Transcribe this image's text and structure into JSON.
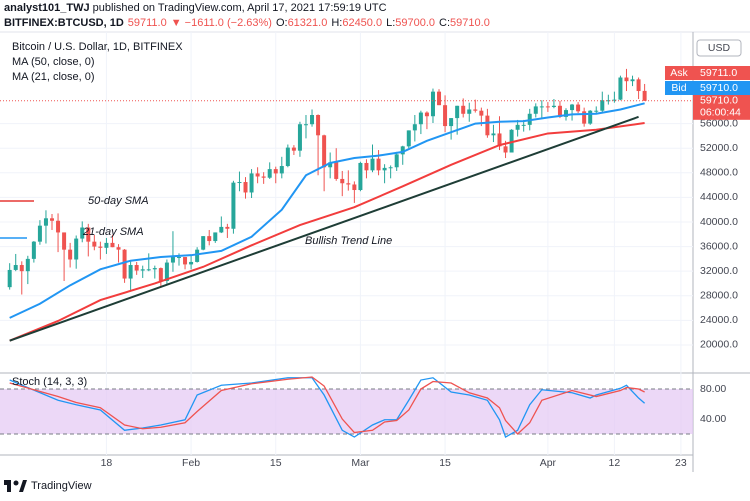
{
  "header": {
    "author": "analyst101_TWJ",
    "published": " published on TradingView.com, April 17, 2021 17:59:19 UTC",
    "symbol": "BITFINEX:BTCUSD, 1D",
    "last": "59711.0",
    "change": "▼ −1611.0 (−2.63%)",
    "ohlc": [
      {
        "label": "O:",
        "value": "61321.0"
      },
      {
        "label": "H:",
        "value": "62450.0"
      },
      {
        "label": "L:",
        "value": "59700.0"
      },
      {
        "label": "C:",
        "value": "59710.0"
      }
    ]
  },
  "chart_data": [
    {
      "type": "candlestick",
      "title": "Bitcoin / U.S. Dollar, 1D, BITFINEX",
      "currency": "USD",
      "up_color": "#26a69a",
      "down_color": "#ef5350",
      "xlim": [
        -1.6,
        113
      ],
      "ylim": [
        15600,
        69600
      ],
      "xticks": [
        {
          "value": 16,
          "label": "18"
        },
        {
          "value": 30,
          "label": "Feb"
        },
        {
          "value": 44,
          "label": "15"
        },
        {
          "value": 58,
          "label": "Mar"
        },
        {
          "value": 72,
          "label": "15"
        },
        {
          "value": 89,
          "label": "Apr"
        },
        {
          "value": 100,
          "label": "12"
        },
        {
          "value": 111,
          "label": "23"
        }
      ],
      "yticks": [
        {
          "value": 20000,
          "label": "20000.0"
        },
        {
          "value": 24000,
          "label": "24000.0"
        },
        {
          "value": 28000,
          "label": "28000.0"
        },
        {
          "value": 32000,
          "label": "32000.0"
        },
        {
          "value": 36000,
          "label": "36000.0"
        },
        {
          "value": 40000,
          "label": "40000.0"
        },
        {
          "value": 44000,
          "label": "44000.0"
        },
        {
          "value": 48000,
          "label": "48000.0"
        },
        {
          "value": 52000,
          "label": "52000.0"
        },
        {
          "value": 56000,
          "label": "56000.0"
        }
      ],
      "grid": true,
      "ohlc": [
        [
          29400,
          33300,
          29000,
          32200
        ],
        [
          32200,
          34800,
          32000,
          33000
        ],
        [
          33000,
          33600,
          28200,
          32000
        ],
        [
          32000,
          34500,
          29900,
          34000
        ],
        [
          34000,
          36900,
          33400,
          36800
        ],
        [
          36800,
          40300,
          36300,
          39400
        ],
        [
          39400,
          41900,
          36500,
          40600
        ],
        [
          40600,
          41300,
          38700,
          40200
        ],
        [
          40200,
          41400,
          35100,
          38300
        ],
        [
          38300,
          38300,
          30400,
          35500
        ],
        [
          35500,
          36600,
          32600,
          33900
        ],
        [
          33900,
          37800,
          32400,
          37300
        ],
        [
          37300,
          40100,
          36700,
          39100
        ],
        [
          39100,
          39700,
          34400,
          36800
        ],
        [
          36800,
          37900,
          35400,
          36000
        ],
        [
          36000,
          36800,
          33900,
          35800
        ],
        [
          35800,
          37400,
          34800,
          36600
        ],
        [
          36600,
          37900,
          35900,
          35900
        ],
        [
          35900,
          36400,
          33400,
          35500
        ],
        [
          35500,
          35600,
          30100,
          30800
        ],
        [
          30800,
          33800,
          28900,
          33000
        ],
        [
          33000,
          33500,
          31400,
          32100
        ],
        [
          32100,
          32900,
          30900,
          32300
        ],
        [
          32300,
          34900,
          32000,
          32300
        ],
        [
          32300,
          32900,
          30800,
          32500
        ],
        [
          32500,
          32600,
          29300,
          30400
        ],
        [
          30400,
          33900,
          29900,
          33400
        ],
        [
          33400,
          38500,
          31900,
          34300
        ],
        [
          34300,
          34900,
          32900,
          34300
        ],
        [
          34300,
          34300,
          32300,
          33100
        ],
        [
          33100,
          34700,
          32300,
          33500
        ],
        [
          33500,
          35900,
          33400,
          35500
        ],
        [
          35500,
          37700,
          35400,
          37700
        ],
        [
          37700,
          38700,
          36200,
          36900
        ],
        [
          36900,
          38300,
          36600,
          38300
        ],
        [
          38300,
          40900,
          38200,
          39200
        ],
        [
          39200,
          39700,
          37400,
          38900
        ],
        [
          38900,
          46700,
          38100,
          46400
        ],
        [
          46400,
          48200,
          45000,
          46500
        ],
        [
          46500,
          47300,
          43800,
          44800
        ],
        [
          44800,
          48600,
          43900,
          47900
        ],
        [
          47900,
          48900,
          46300,
          47400
        ],
        [
          47400,
          48100,
          46200,
          47200
        ],
        [
          47200,
          49700,
          47000,
          48600
        ],
        [
          48600,
          49000,
          46300,
          47900
        ],
        [
          47900,
          50600,
          47100,
          49100
        ],
        [
          49100,
          52600,
          48900,
          52100
        ],
        [
          52100,
          52500,
          50900,
          51600
        ],
        [
          51600,
          56300,
          50600,
          55900
        ],
        [
          55900,
          57400,
          53600,
          55900
        ],
        [
          55900,
          58300,
          55500,
          57400
        ],
        [
          57400,
          57500,
          47600,
          54100
        ],
        [
          54100,
          54200,
          45000,
          48900
        ],
        [
          48900,
          51300,
          47100,
          49700
        ],
        [
          49700,
          52000,
          46700,
          47000
        ],
        [
          47000,
          48300,
          44200,
          46300
        ],
        [
          46300,
          48400,
          45100,
          46100
        ],
        [
          46100,
          46600,
          43100,
          45200
        ],
        [
          45200,
          49800,
          45000,
          49600
        ],
        [
          49600,
          50200,
          47100,
          48400
        ],
        [
          48400,
          52600,
          48100,
          50300
        ],
        [
          50300,
          51700,
          47600,
          48400
        ],
        [
          48400,
          49400,
          46300,
          48800
        ],
        [
          48800,
          49200,
          47100,
          48900
        ],
        [
          48900,
          51400,
          48300,
          51000
        ],
        [
          51000,
          52400,
          49300,
          52300
        ],
        [
          52300,
          54900,
          51900,
          54900
        ],
        [
          54900,
          57400,
          53100,
          55900
        ],
        [
          55900,
          58100,
          54300,
          57800
        ],
        [
          57800,
          58000,
          55100,
          57200
        ],
        [
          57200,
          61700,
          56100,
          61200
        ],
        [
          61200,
          61600,
          59000,
          59000
        ],
        [
          59000,
          60600,
          54600,
          55600
        ],
        [
          55600,
          56900,
          53400,
          56900
        ],
        [
          56900,
          58900,
          54200,
          58900
        ],
        [
          58900,
          60100,
          57000,
          57600
        ],
        [
          57600,
          59400,
          56300,
          58300
        ],
        [
          58300,
          59900,
          57800,
          58100
        ],
        [
          58100,
          58600,
          55600,
          57300
        ],
        [
          57300,
          58400,
          53700,
          54100
        ],
        [
          54100,
          55800,
          53000,
          54400
        ],
        [
          54400,
          57200,
          51700,
          52300
        ],
        [
          52300,
          53200,
          50400,
          51300
        ],
        [
          51300,
          55100,
          51300,
          55000
        ],
        [
          55000,
          56600,
          53900,
          55800
        ],
        [
          55800,
          56600,
          54700,
          55800
        ],
        [
          55800,
          58400,
          54900,
          57600
        ],
        [
          57600,
          59300,
          57000,
          58800
        ],
        [
          58800,
          59800,
          56900,
          58800
        ],
        [
          58800,
          59500,
          57900,
          58700
        ],
        [
          58700,
          60000,
          58500,
          58900
        ],
        [
          58900,
          59700,
          56900,
          57100
        ],
        [
          57100,
          58500,
          56500,
          58200
        ],
        [
          58200,
          59200,
          56500,
          59100
        ],
        [
          59100,
          59500,
          57700,
          58000
        ],
        [
          58000,
          58600,
          55500,
          56000
        ],
        [
          56000,
          58200,
          55800,
          58100
        ],
        [
          58100,
          58800,
          57600,
          58100
        ],
        [
          58100,
          61200,
          57900,
          59800
        ],
        [
          59800,
          60700,
          59100,
          59800
        ],
        [
          59800,
          61200,
          59400,
          59900
        ],
        [
          59900,
          63800,
          59800,
          63500
        ],
        [
          63500,
          64900,
          61300,
          62900
        ],
        [
          62900,
          63800,
          62100,
          63200
        ],
        [
          63200,
          63500,
          60000,
          61300
        ],
        [
          61321,
          62450,
          59700,
          59710
        ]
      ],
      "series": [
        {
          "name": "MA (50, close, 0)",
          "color": "#f23d3d",
          "x": [
            0,
            8,
            15,
            24,
            32,
            40,
            48,
            57,
            65,
            73,
            81,
            89,
            97,
            105
          ],
          "values": [
            20700,
            23900,
            27300,
            30000,
            32700,
            36200,
            39500,
            42400,
            45800,
            49300,
            52500,
            54400,
            55000,
            56100
          ]
        },
        {
          "name": "MA (21, close, 0)",
          "color": "#2196f3",
          "x": [
            0,
            5,
            10,
            15,
            20,
            25,
            30,
            35,
            40,
            45,
            49,
            53,
            57,
            61,
            65,
            69,
            73,
            77,
            81,
            85,
            89,
            93,
            97,
            101,
            105
          ],
          "values": [
            24400,
            26700,
            29700,
            32300,
            33700,
            34300,
            34600,
            35300,
            37600,
            42000,
            47600,
            49600,
            50400,
            50800,
            51400,
            53200,
            54600,
            56000,
            56300,
            56400,
            57000,
            57500,
            57600,
            58300,
            59300
          ]
        }
      ],
      "trend_line": {
        "label": "Bullish Trend Line",
        "color": "#1e3d36",
        "x": [
          0,
          104
        ],
        "values": [
          20700,
          57100
        ]
      },
      "annotations": [
        {
          "text": "50-day SMA",
          "color": "#e53935"
        },
        {
          "text": "21-day SMA",
          "color": "#2196f3"
        }
      ],
      "quotes": [
        {
          "name": "Ask",
          "value_label": "59711.0",
          "color": "#ef5350"
        },
        {
          "name": "Bid",
          "value_label": "59710.0",
          "color": "#2196f3"
        }
      ],
      "last_price": {
        "value": 59710,
        "label": "59710.0",
        "countdown": "06:00:44",
        "color": "#ef5350"
      }
    },
    {
      "type": "line",
      "title": "Stoch (14, 3, 3)",
      "xlim": [
        -1.6,
        113
      ],
      "ylim": [
        -8,
        98.7
      ],
      "yticks": [
        {
          "value": 80,
          "label": "80.00"
        },
        {
          "value": 40,
          "label": "40.00"
        }
      ],
      "bands": [
        20,
        80
      ],
      "band_color": "#e4c8f4",
      "series": [
        {
          "color": "#2196f3",
          "x": [
            0,
            8,
            11,
            15,
            19,
            22,
            25,
            29,
            31,
            35,
            40,
            46,
            50,
            52,
            55,
            57,
            60,
            62,
            64,
            66,
            68,
            70,
            73,
            76,
            79,
            81,
            82,
            84,
            86,
            88,
            93,
            96,
            97,
            101,
            102,
            104,
            105
          ],
          "values": [
            92,
            65,
            59,
            52,
            25,
            28,
            32,
            39,
            72,
            85,
            88,
            95,
            95,
            72,
            25,
            16,
            32,
            39,
            39,
            65,
            92,
            95,
            76,
            72,
            65,
            39,
            16,
            25,
            59,
            79,
            75,
            68,
            72,
            81,
            85,
            68,
            61
          ]
        },
        {
          "color": "#ef5350",
          "x": [
            0,
            8,
            11,
            15,
            19,
            22,
            25,
            29,
            31,
            35,
            40,
            46,
            50,
            52,
            55,
            57,
            60,
            62,
            64,
            66,
            68,
            70,
            73,
            76,
            79,
            81,
            82,
            84,
            86,
            88,
            93,
            97,
            101,
            102,
            104,
            105
          ],
          "values": [
            88,
            70,
            62,
            55,
            32,
            27,
            29,
            35,
            50,
            78,
            87,
            93,
            96,
            84,
            40,
            22,
            25,
            36,
            38,
            52,
            80,
            90,
            88,
            75,
            68,
            55,
            38,
            20,
            35,
            65,
            78,
            70,
            78,
            82,
            80,
            76
          ]
        }
      ]
    }
  ],
  "footer": {
    "brand": "TradingView"
  }
}
